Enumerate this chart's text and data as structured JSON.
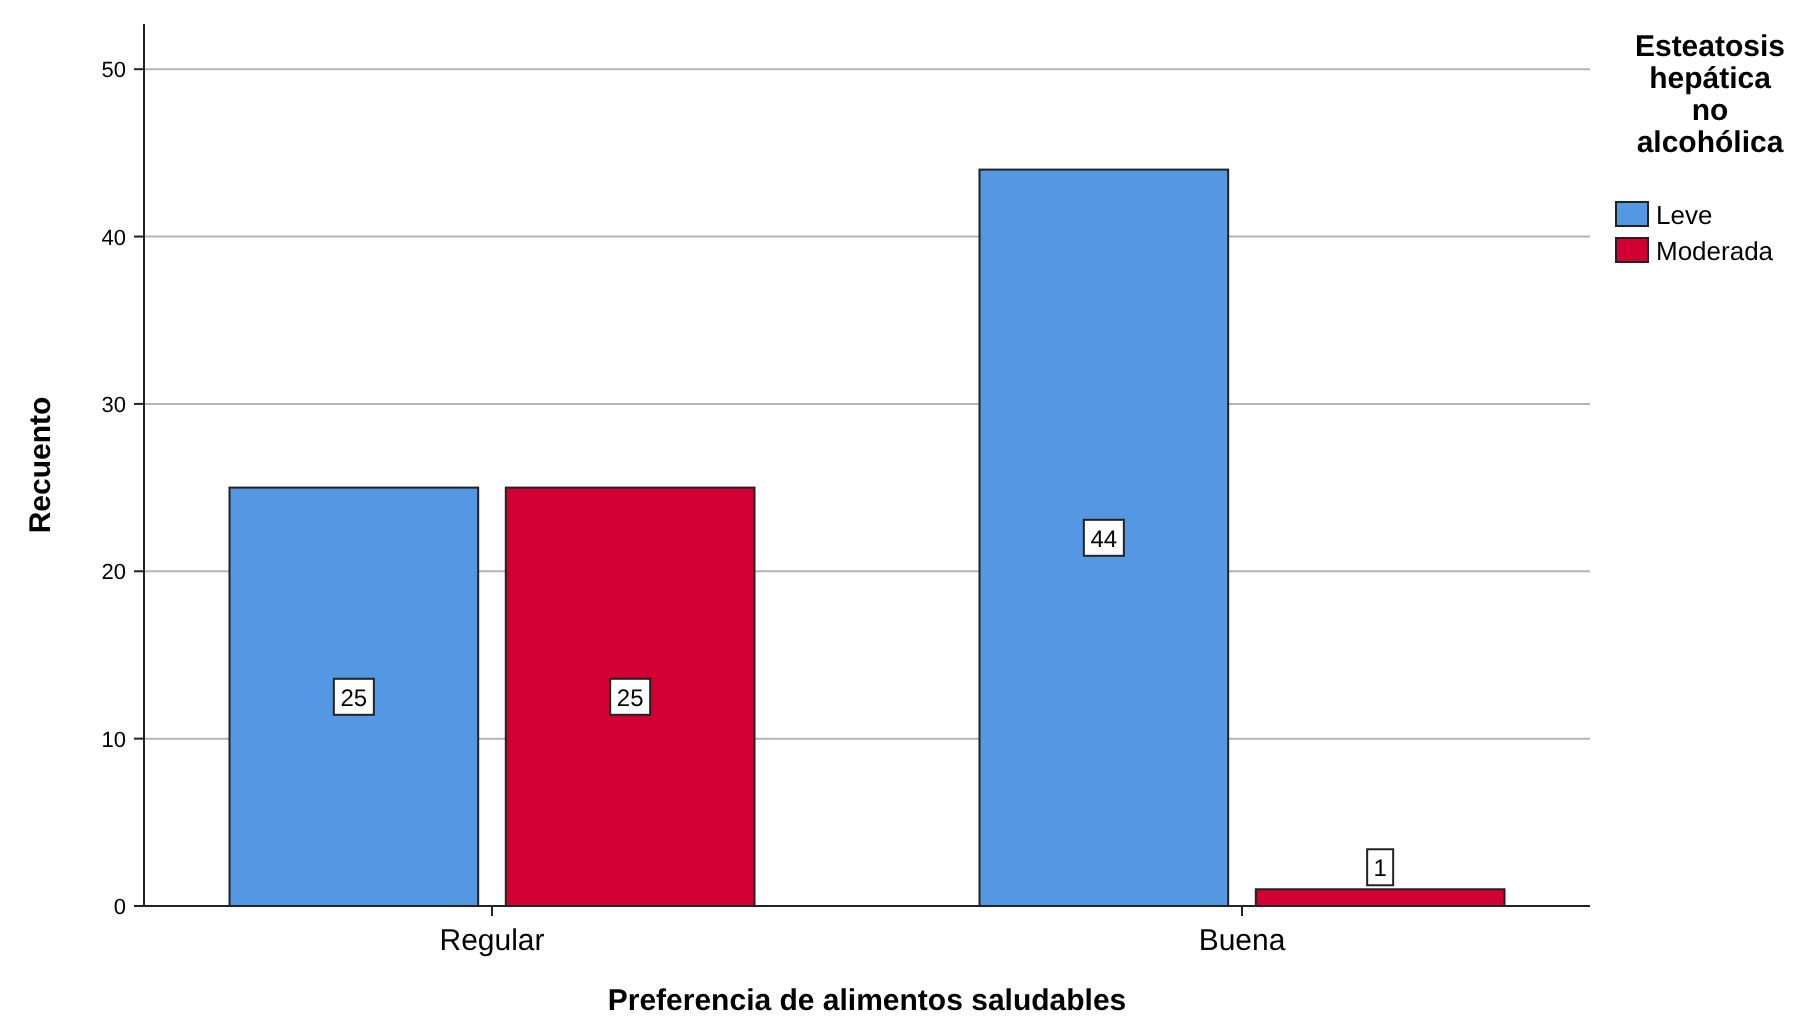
{
  "chart_data": {
    "type": "bar",
    "xlabel": "Preferencia de alimentos saludables",
    "ylabel": "Recuento",
    "legend_title": "Esteatosis hepática no alcohólica",
    "categories": [
      "Regular",
      "Buena"
    ],
    "series": [
      {
        "name": "Leve",
        "color": "#5497e3",
        "values": [
          25,
          44
        ]
      },
      {
        "name": "Moderada",
        "color": "#d20032",
        "values": [
          25,
          1
        ]
      }
    ],
    "ylim": [
      0,
      52.7
    ],
    "yticks": [
      0,
      10,
      20,
      30,
      40,
      50
    ],
    "grid": "y",
    "legend": "top right",
    "data_labels": true
  }
}
